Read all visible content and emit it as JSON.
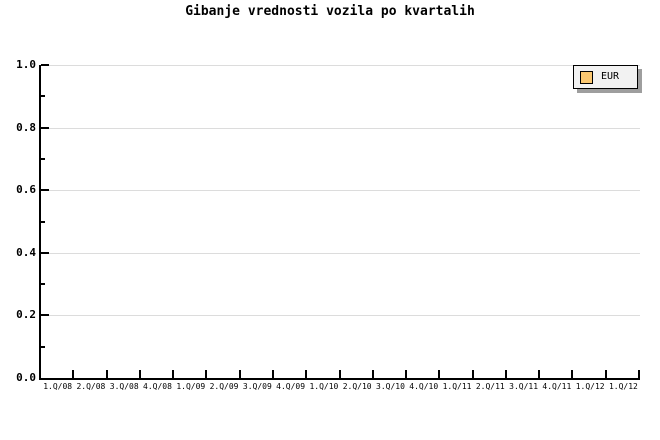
{
  "chart_data": {
    "type": "line",
    "title": "Gibanje vrednosti vozila po kvartalih",
    "categories": [
      "1.Q/08",
      "2.Q/08",
      "3.Q/08",
      "4.Q/08",
      "1.Q/09",
      "2.Q/09",
      "3.Q/09",
      "4.Q/09",
      "1.Q/10",
      "2.Q/10",
      "3.Q/10",
      "4.Q/10",
      "1.Q/11",
      "2.Q/11",
      "3.Q/11",
      "4.Q/11",
      "1.Q/12",
      "1.Q/12"
    ],
    "series": [
      {
        "name": "EUR",
        "color": "#FBC871",
        "values": []
      }
    ],
    "xlabel": "",
    "ylabel": "",
    "ylim": [
      0.0,
      1.0
    ],
    "y_major_ticks": [
      1.0,
      0.8,
      0.6,
      0.4,
      0.2,
      0.0
    ],
    "y_tick_labels": [
      "1.0",
      "0.8",
      "0.6",
      "0.4",
      "0.2",
      "0.0"
    ],
    "y_minor_ticks": [
      0.9,
      0.7,
      0.5,
      0.3,
      0.1
    ],
    "grid": "horizontal major gridlines only",
    "legend_position": "top-right"
  },
  "legend": {
    "label": "EUR"
  },
  "colors": {
    "background": "#FFFFFF",
    "axis": "#000000",
    "text": "#000000",
    "gridline": "#DCDCDC",
    "legend_background": "#F2F2F2",
    "legend_border": "#000000",
    "legend_shadow": "#9E9E9E",
    "series_swatch": "#FBC871"
  }
}
